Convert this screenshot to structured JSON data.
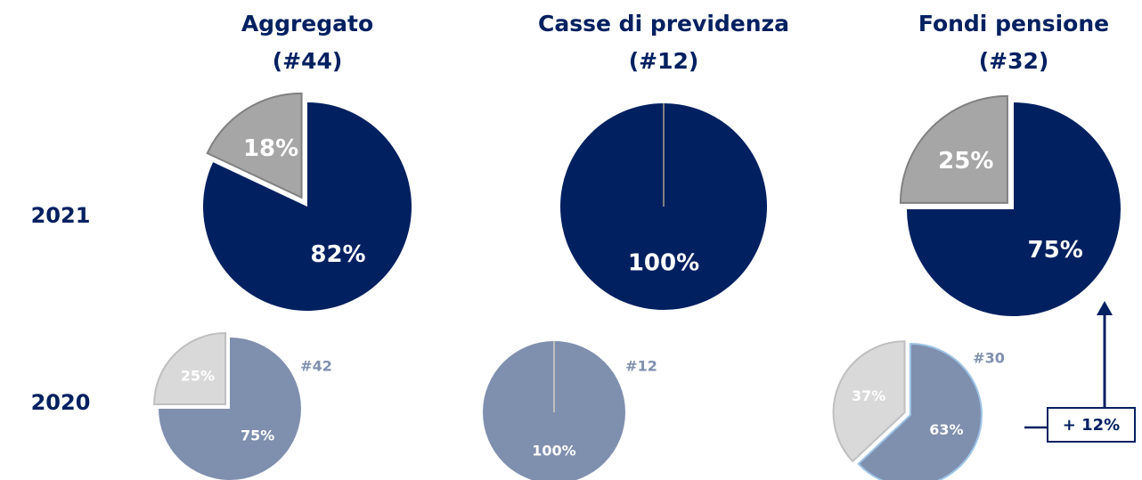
{
  "rows": [
    "2021",
    "2020"
  ],
  "annotation": "+ 12%",
  "chart_data": [
    {
      "type": "pie",
      "title": "Aggregato",
      "subtitle": "(#44)",
      "values": [
        82,
        18
      ],
      "value_labels": [
        "82%",
        "18%"
      ],
      "colors": [
        "#002060",
        "#a6a6a6"
      ]
    },
    {
      "type": "pie",
      "title": "Casse di previdenza",
      "subtitle": "(#12)",
      "values": [
        100
      ],
      "value_labels": [
        "100%"
      ],
      "colors": [
        "#002060"
      ]
    },
    {
      "type": "pie",
      "title": "Fondi pensione",
      "subtitle": "(#32)",
      "values": [
        75,
        25
      ],
      "value_labels": [
        "75%",
        "25%"
      ],
      "colors": [
        "#002060",
        "#a6a6a6"
      ]
    },
    {
      "type": "pie",
      "note": "#42",
      "values": [
        75,
        25
      ],
      "value_labels": [
        "75%",
        "25%"
      ],
      "colors": [
        "#7f8fae",
        "#d9d9d9"
      ]
    },
    {
      "type": "pie",
      "note": "#12",
      "values": [
        100
      ],
      "value_labels": [
        "100%"
      ],
      "colors": [
        "#7f8fae"
      ]
    },
    {
      "type": "pie",
      "note": "#30",
      "values": [
        63,
        37
      ],
      "value_labels": [
        "63%",
        "37%"
      ],
      "colors": [
        "#7f8fae",
        "#d9d9d9"
      ]
    }
  ]
}
